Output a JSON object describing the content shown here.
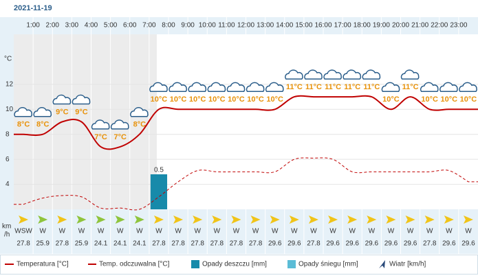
{
  "chart_data": {
    "type": "line",
    "title": "2021-11-19",
    "hour_labels": [
      "1:00",
      "2:00",
      "3:00",
      "4:00",
      "5:00",
      "6:00",
      "7:00",
      "8:00",
      "9:00",
      "10:00",
      "11:00",
      "12:00",
      "13:00",
      "14:00",
      "15:00",
      "16:00",
      "17:00",
      "18:00",
      "19:00",
      "20:00",
      "21:00",
      "22:00",
      "23:00"
    ],
    "y_axis_label": "°C",
    "ylim": [
      2,
      16
    ],
    "yticks": [
      4,
      6,
      8,
      10,
      12
    ],
    "series": [
      {
        "name": "Temperatura [°C]",
        "color": "#c00000",
        "values": [
          8,
          8,
          9,
          9,
          7,
          7,
          8,
          10,
          10,
          10,
          10,
          10,
          10,
          10,
          11,
          11,
          11,
          11,
          11,
          10,
          11,
          10,
          10,
          10
        ],
        "value_labels": [
          "8°C",
          "8°C",
          "9°C",
          "9°C",
          "7°C",
          "7°C",
          "8°C",
          "10°C",
          "10°C",
          "10°C",
          "10°C",
          "10°C",
          "10°C",
          "10°C",
          "11°C",
          "11°C",
          "11°C",
          "11°C",
          "11°C",
          "10°C",
          "11°C",
          "10°C",
          "10°C",
          "10°C"
        ]
      },
      {
        "name": "Temp. odczuwalna [°C]",
        "color": "#c00000",
        "values": [
          2.4,
          2.9,
          3.1,
          3.0,
          2.1,
          2.1,
          2.0,
          3.0,
          4.2,
          5.1,
          5.0,
          5.0,
          5.0,
          5.0,
          6.0,
          6.1,
          6.0,
          5.0,
          5.0,
          5.0,
          5.0,
          5.0,
          5.1,
          4.2
        ]
      },
      {
        "name": "Opady deszczu [mm]",
        "color": "#178aaa",
        "axis": "y2",
        "values": [
          null,
          null,
          null,
          null,
          null,
          null,
          null,
          0.5,
          null,
          null,
          null,
          null,
          null,
          null,
          null,
          null,
          null,
          null,
          null,
          null,
          null,
          null,
          null,
          null
        ]
      },
      {
        "name": "Opady śniegu [mm]",
        "color": "#5bbcd6",
        "axis": "y2",
        "values": [
          null,
          null,
          null,
          null,
          null,
          null,
          null,
          null,
          null,
          null,
          null,
          null,
          null,
          null,
          null,
          null,
          null,
          null,
          null,
          null,
          null,
          null,
          null,
          null
        ]
      }
    ],
    "y2lim": [
      0,
      2.5
    ],
    "wind": {
      "name": "Wiatr [km/h]",
      "unit_lines": [
        "km",
        "/h"
      ],
      "directions": [
        "WSW",
        "W",
        "W",
        "W",
        "W",
        "W",
        "W",
        "W",
        "W",
        "W",
        "W",
        "W",
        "W",
        "W",
        "W",
        "W",
        "W",
        "W",
        "W",
        "W",
        "W",
        "W",
        "W",
        "W"
      ],
      "values": [
        27.8,
        25.9,
        27.8,
        25.9,
        24.1,
        24.1,
        24.1,
        27.8,
        27.8,
        27.8,
        27.8,
        27.8,
        27.8,
        29.6,
        29.6,
        27.8,
        29.6,
        29.6,
        29.6,
        29.6,
        29.6,
        27.8,
        29.6,
        29.6
      ],
      "colors": [
        "#f0c419",
        "#8fc43c",
        "#f0c419",
        "#8fc43c",
        "#8fc43c",
        "#8fc43c",
        "#8fc43c",
        "#f0c419",
        "#f0c419",
        "#f0c419",
        "#f0c419",
        "#f0c419",
        "#f0c419",
        "#f0c419",
        "#f0c419",
        "#f0c419",
        "#f0c419",
        "#f0c419",
        "#f0c419",
        "#f0c419",
        "#f0c419",
        "#f0c419",
        "#f0c419",
        "#f0c419"
      ]
    }
  }
}
